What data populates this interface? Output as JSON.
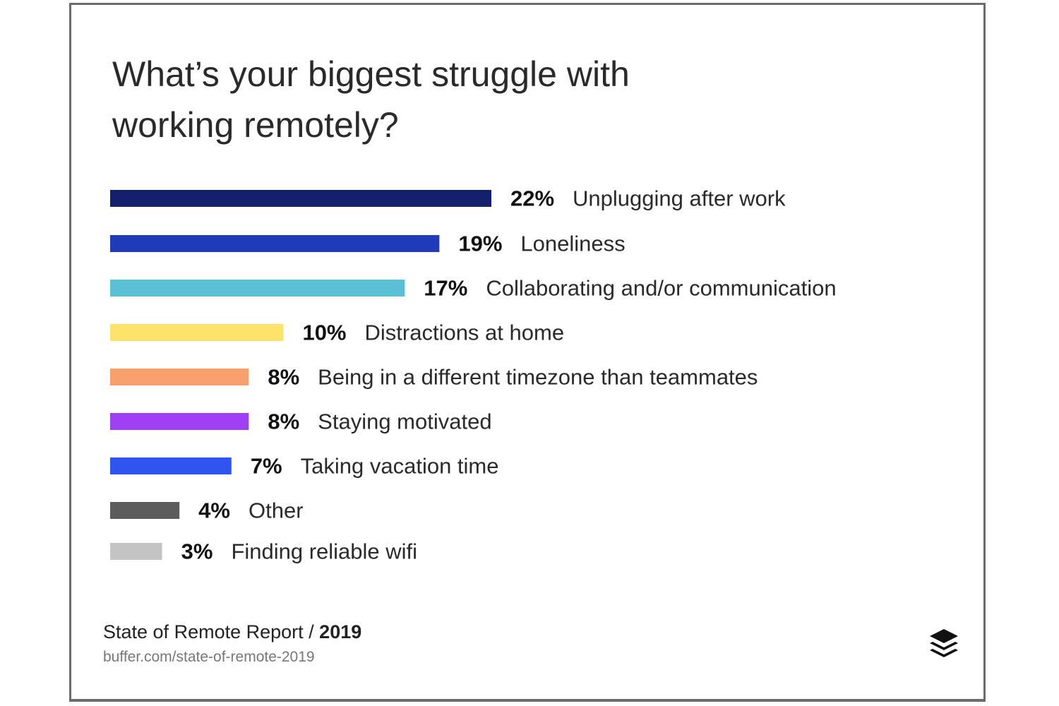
{
  "title": "What’s your biggest struggle with working remotely?",
  "footer": {
    "report": "State of Remote Report /",
    "year": "2019",
    "url": "buffer.com/state-of-remote-2019"
  },
  "logo_icon": "buffer-layers-icon",
  "chart_data": {
    "type": "bar",
    "orientation": "horizontal",
    "title": "What’s your biggest struggle with working remotely?",
    "categories": [
      "Unplugging after work",
      "Loneliness",
      "Collaborating and/or communication",
      "Distractions at home",
      "Being in a different timezone than teammates",
      "Staying motivated",
      "Taking vacation time",
      "Other",
      "Finding reliable wifi"
    ],
    "values": [
      22,
      19,
      17,
      10,
      8,
      8,
      7,
      4,
      3
    ],
    "value_labels": [
      "22%",
      "19%",
      "17%",
      "10%",
      "8%",
      "8%",
      "7%",
      "4%",
      "3%"
    ],
    "colors": [
      "#14206b",
      "#1f3bb8",
      "#5bbfd6",
      "#fde36a",
      "#f8a06b",
      "#a040f4",
      "#2f55f0",
      "#5c5c5c",
      "#c4c4c4"
    ],
    "unit": "%",
    "xlim": [
      0,
      22
    ],
    "grid": false,
    "legend": "none"
  }
}
